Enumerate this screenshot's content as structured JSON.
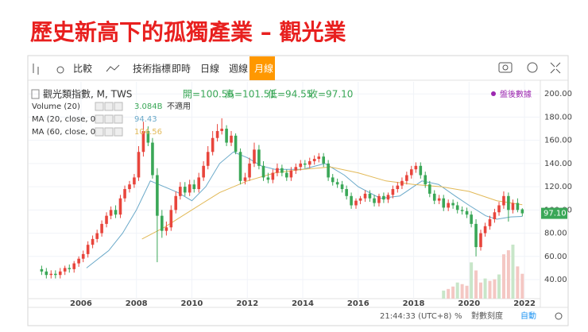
{
  "title": "歷史新高下的孤獨產業 – 觀光業",
  "toolbar": {
    "items": [
      "比較",
      "技術指標",
      "即時",
      "日線",
      "週線",
      "月線"
    ],
    "active_index": 5
  },
  "footer": [
    "21:44:33 (UTC+8)",
    "%",
    "對數刻度",
    "自動"
  ],
  "chart_data": {
    "type": "candlestick",
    "title": "觀光類指數, M, TWS",
    "status": "盤後數據",
    "ohlc_labels": [
      "開=100.56",
      "高=101.51",
      "低=94.55",
      "收=97.10"
    ],
    "price_label": "97.10",
    "up_color": "#e8453c",
    "down_color": "#3aa757",
    "grid": true,
    "xlim": [
      2004.11,
      2022.57
    ],
    "xticks": [
      2006,
      2008,
      2010,
      2012,
      2014,
      2016,
      2018,
      2020,
      2022
    ],
    "ylim": [
      23.6,
      210.4
    ],
    "yticks": [
      {
        "value": 40,
        "label": "40.00"
      },
      {
        "value": 60,
        "label": "60.00"
      },
      {
        "value": 80,
        "label": "80.00"
      },
      {
        "value": 100,
        "label": "100.00"
      },
      {
        "value": 120,
        "label": "120.00"
      },
      {
        "value": 140,
        "label": "140.00"
      },
      {
        "value": 160,
        "label": "160.00"
      },
      {
        "value": 180,
        "label": "180.00"
      },
      {
        "value": 200,
        "label": "200.00"
      }
    ],
    "x": [
      2004.58,
      2004.75,
      2004.92,
      2005.08,
      2005.25,
      2005.42,
      2005.58,
      2005.75,
      2005.92,
      2006.08,
      2006.25,
      2006.42,
      2006.58,
      2006.75,
      2006.92,
      2007.08,
      2007.25,
      2007.42,
      2007.58,
      2007.75,
      2007.92,
      2008.08,
      2008.25,
      2008.42,
      2008.58,
      2008.75,
      2008.92,
      2009.08,
      2009.25,
      2009.42,
      2009.58,
      2009.75,
      2009.92,
      2010.08,
      2010.25,
      2010.42,
      2010.58,
      2010.75,
      2010.92,
      2011.08,
      2011.25,
      2011.42,
      2011.58,
      2011.75,
      2011.92,
      2012.08,
      2012.25,
      2012.42,
      2012.58,
      2012.75,
      2012.92,
      2013.08,
      2013.25,
      2013.42,
      2013.58,
      2013.75,
      2013.92,
      2014.08,
      2014.25,
      2014.42,
      2014.58,
      2014.75,
      2014.92,
      2015.08,
      2015.25,
      2015.42,
      2015.58,
      2015.75,
      2015.92,
      2016.08,
      2016.25,
      2016.42,
      2016.58,
      2016.75,
      2016.92,
      2017.08,
      2017.25,
      2017.42,
      2017.58,
      2017.75,
      2017.92,
      2018.08,
      2018.25,
      2018.42,
      2018.58,
      2018.75,
      2018.92,
      2019.08,
      2019.25,
      2019.42,
      2019.58,
      2019.75,
      2019.92,
      2020.08,
      2020.25,
      2020.42,
      2020.58,
      2020.75,
      2020.92,
      2021.08,
      2021.25,
      2021.42,
      2021.58,
      2021.75,
      2021.92
    ],
    "open": [
      49,
      47,
      44,
      45,
      44,
      47,
      50,
      49,
      54,
      58,
      62,
      70,
      75,
      80,
      88,
      95,
      100,
      96,
      110,
      118,
      122,
      128,
      150,
      168,
      158,
      130,
      95,
      82,
      85,
      100,
      112,
      120,
      115,
      122,
      118,
      128,
      138,
      150,
      162,
      168,
      170,
      158,
      164,
      150,
      125,
      128,
      140,
      152,
      138,
      128,
      126,
      132,
      136,
      132,
      128,
      134,
      137,
      140,
      139,
      142,
      144,
      146,
      140,
      128,
      124,
      122,
      118,
      112,
      104,
      108,
      110,
      114,
      110,
      106,
      112,
      109,
      113,
      118,
      121,
      125,
      130,
      135,
      138,
      130,
      122,
      114,
      108,
      110,
      102,
      106,
      104,
      100,
      99,
      96,
      88,
      68,
      80,
      86,
      92,
      98,
      104,
      112,
      100,
      106,
      100.56
    ],
    "high": [
      52,
      50,
      48,
      48,
      50,
      52,
      53,
      56,
      60,
      65,
      73,
      78,
      83,
      91,
      98,
      103,
      104,
      113,
      121,
      125,
      131,
      155,
      176,
      172,
      162,
      136,
      100,
      90,
      104,
      116,
      124,
      124,
      126,
      126,
      132,
      142,
      155,
      168,
      174,
      179,
      173,
      168,
      166,
      153,
      132,
      145,
      158,
      156,
      142,
      132,
      135,
      140,
      139,
      135,
      137,
      140,
      143,
      143,
      145,
      147,
      149,
      149,
      143,
      131,
      127,
      125,
      121,
      115,
      110,
      112,
      117,
      117,
      113,
      114,
      115,
      115,
      121,
      124,
      128,
      133,
      138,
      141,
      141,
      133,
      125,
      117,
      113,
      113,
      109,
      109,
      107,
      103,
      102,
      99,
      92,
      83,
      89,
      95,
      101,
      107,
      116,
      115,
      109,
      110,
      101.51
    ],
    "low": [
      44,
      41,
      41,
      41,
      41,
      44,
      46,
      46,
      51,
      55,
      59,
      67,
      72,
      77,
      85,
      92,
      93,
      93,
      107,
      115,
      119,
      125,
      146,
      155,
      127,
      55,
      76,
      78,
      82,
      97,
      109,
      112,
      112,
      115,
      115,
      125,
      135,
      147,
      159,
      165,
      155,
      155,
      148,
      122,
      122,
      125,
      137,
      135,
      125,
      123,
      123,
      129,
      129,
      125,
      125,
      131,
      134,
      136,
      136,
      139,
      141,
      137,
      125,
      121,
      119,
      115,
      109,
      101,
      101,
      105,
      107,
      107,
      103,
      103,
      106,
      106,
      110,
      115,
      118,
      122,
      127,
      132,
      127,
      119,
      111,
      105,
      105,
      99,
      99,
      101,
      97,
      96,
      93,
      85,
      60,
      65,
      77,
      83,
      89,
      95,
      101,
      90,
      97,
      98,
      94.55
    ],
    "close": [
      47,
      44,
      45,
      44,
      47,
      50,
      49,
      54,
      58,
      62,
      70,
      75,
      80,
      88,
      95,
      100,
      96,
      110,
      118,
      122,
      128,
      150,
      168,
      158,
      130,
      95,
      82,
      85,
      100,
      112,
      120,
      115,
      122,
      118,
      128,
      138,
      150,
      162,
      168,
      170,
      158,
      164,
      150,
      125,
      128,
      140,
      152,
      138,
      128,
      126,
      132,
      136,
      132,
      128,
      134,
      137,
      140,
      139,
      142,
      144,
      146,
      140,
      128,
      124,
      122,
      118,
      112,
      104,
      108,
      110,
      114,
      110,
      106,
      112,
      109,
      113,
      118,
      121,
      125,
      130,
      135,
      138,
      130,
      122,
      114,
      108,
      110,
      102,
      106,
      104,
      100,
      99,
      96,
      88,
      68,
      80,
      86,
      92,
      98,
      104,
      112,
      100,
      106,
      100,
      97.1
    ],
    "indicators": [
      {
        "name": "Volume (20)",
        "value_label": "3.084B",
        "note": "不適用",
        "color": "#d9d9d9",
        "x": [
          2019.08,
          2019.25,
          2019.42,
          2019.58,
          2019.75,
          2019.92,
          2020.08,
          2020.25,
          2020.42,
          2020.58,
          2020.75,
          2020.92,
          2021.08,
          2021.25,
          2021.42,
          2021.58,
          2021.75,
          2021.92
        ],
        "values": [
          1.0,
          1.2,
          1.5,
          2.0,
          1.8,
          1.6,
          4.5,
          3.5,
          2.0,
          2.5,
          2.2,
          2.4,
          3.0,
          5.5,
          6.0,
          6.7,
          4.0,
          3.084
        ]
      },
      {
        "name": "MA (20, close, 0)",
        "color": "#6aa9c9",
        "x": [
          2006.2,
          2007.0,
          2007.5,
          2008.0,
          2008.5,
          2009.0,
          2009.5,
          2010.0,
          2010.5,
          2011.0,
          2011.5,
          2012.0,
          2012.5,
          2013.0,
          2014.0,
          2014.8,
          2015.5,
          2016.0,
          2016.8,
          2017.5,
          2018.3,
          2018.9,
          2019.5,
          2020.0,
          2020.6,
          2021.0,
          2021.5,
          2021.92
        ],
        "values": [
          50,
          65,
          80,
          100,
          125,
          120,
          115,
          108,
          120,
          140,
          150,
          145,
          138,
          135,
          135,
          140,
          130,
          120,
          110,
          112,
          125,
          122,
          112,
          104,
          95,
          92,
          94,
          94.43
        ]
      },
      {
        "name": "MA (60, close, 0)",
        "color": "#e2b957",
        "x": [
          2008.2,
          2009.0,
          2010.0,
          2011.0,
          2012.0,
          2013.0,
          2014.0,
          2015.0,
          2016.0,
          2017.0,
          2018.0,
          2019.0,
          2020.0,
          2021.0,
          2021.92
        ],
        "values": [
          75,
          85,
          100,
          115,
          125,
          132,
          135,
          137,
          132,
          125,
          122,
          120,
          116,
          108,
          104.56
        ]
      }
    ]
  }
}
